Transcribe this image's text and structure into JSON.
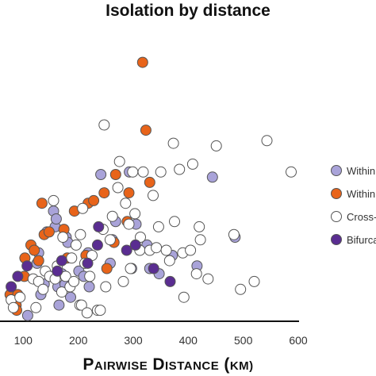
{
  "chart_data": {
    "type": "scatter",
    "title": "Isolation by distance",
    "xlabel": "Pairwise distance (km)",
    "ylabel": "",
    "xlim": [
      75,
      600
    ],
    "ylim": [
      0,
      100
    ],
    "xticks": [
      "100",
      "200",
      "300",
      "400",
      "500",
      "600"
    ],
    "xtick_values": [
      100,
      200,
      300,
      400,
      500,
      600
    ],
    "legend_position": "right",
    "series": [
      {
        "name": "Within",
        "color": "#a9a3d9",
        "points": [
          [
            108,
            1
          ],
          [
            125,
            21
          ],
          [
            128,
            25
          ],
          [
            132,
            9
          ],
          [
            138,
            13
          ],
          [
            143,
            33
          ],
          [
            155,
            41
          ],
          [
            158,
            35
          ],
          [
            160,
            38
          ],
          [
            163,
            12
          ],
          [
            165,
            5
          ],
          [
            170,
            17
          ],
          [
            176,
            13
          ],
          [
            178,
            31
          ],
          [
            181,
            29
          ],
          [
            186,
            8
          ],
          [
            201,
            18
          ],
          [
            210,
            16
          ],
          [
            218,
            25
          ],
          [
            220,
            12
          ],
          [
            241,
            55
          ],
          [
            258,
            21
          ],
          [
            262,
            30
          ],
          [
            268,
            37
          ],
          [
            293,
            56
          ],
          [
            297,
            19
          ],
          [
            305,
            36
          ],
          [
            325,
            28
          ],
          [
            330,
            19
          ],
          [
            347,
            17
          ],
          [
            371,
            24
          ],
          [
            416,
            20
          ],
          [
            444,
            54
          ],
          [
            485,
            31
          ]
        ]
      },
      {
        "name": "Within",
        "color": "#e8641a",
        "points": [
          [
            76,
            9
          ],
          [
            87,
            5
          ],
          [
            88,
            3
          ],
          [
            90,
            9
          ],
          [
            102,
            16
          ],
          [
            103,
            23
          ],
          [
            114,
            28
          ],
          [
            120,
            26
          ],
          [
            128,
            22
          ],
          [
            134,
            44
          ],
          [
            138,
            32
          ],
          [
            147,
            33
          ],
          [
            174,
            34
          ],
          [
            180,
            23
          ],
          [
            193,
            41
          ],
          [
            214,
            24
          ],
          [
            218,
            44
          ],
          [
            228,
            45
          ],
          [
            247,
            48
          ],
          [
            252,
            19
          ],
          [
            265,
            29
          ],
          [
            268,
            55
          ],
          [
            289,
            37
          ],
          [
            292,
            48
          ],
          [
            317,
            98
          ],
          [
            323,
            72
          ],
          [
            330,
            52
          ]
        ]
      },
      {
        "name": "Cross-",
        "color": "#ffffff",
        "points": [
          [
            78,
            7
          ],
          [
            82,
            4
          ],
          [
            94,
            8
          ],
          [
            118,
            15
          ],
          [
            123,
            4
          ],
          [
            128,
            14
          ],
          [
            136,
            11
          ],
          [
            140,
            18
          ],
          [
            148,
            16
          ],
          [
            155,
            45
          ],
          [
            158,
            15
          ],
          [
            162,
            20
          ],
          [
            170,
            10
          ],
          [
            172,
            31
          ],
          [
            177,
            16
          ],
          [
            185,
            12
          ],
          [
            188,
            23
          ],
          [
            192,
            14
          ],
          [
            196,
            28
          ],
          [
            203,
            5
          ],
          [
            204,
            32
          ],
          [
            206,
            5
          ],
          [
            208,
            42
          ],
          [
            212,
            21
          ],
          [
            216,
            2
          ],
          [
            221,
            16
          ],
          [
            225,
            24
          ],
          [
            235,
            3
          ],
          [
            240,
            3
          ],
          [
            245,
            34
          ],
          [
            247,
            74
          ],
          [
            250,
            12
          ],
          [
            258,
            30
          ],
          [
            262,
            39
          ],
          [
            272,
            50
          ],
          [
            275,
            60
          ],
          [
            282,
            14
          ],
          [
            286,
            44
          ],
          [
            292,
            36
          ],
          [
            295,
            19
          ],
          [
            299,
            56
          ],
          [
            303,
            40
          ],
          [
            312,
            26
          ],
          [
            313,
            31
          ],
          [
            318,
            56
          ],
          [
            330,
            26
          ],
          [
            336,
            47
          ],
          [
            342,
            27
          ],
          [
            346,
            35
          ],
          [
            350,
            56
          ],
          [
            360,
            26
          ],
          [
            366,
            22
          ],
          [
            373,
            67
          ],
          [
            375,
            37
          ],
          [
            384,
            57
          ],
          [
            390,
            25
          ],
          [
            392,
            8
          ],
          [
            404,
            26
          ],
          [
            408,
            59
          ],
          [
            415,
            17
          ],
          [
            420,
            35
          ],
          [
            422,
            30
          ],
          [
            436,
            15
          ],
          [
            451,
            66
          ],
          [
            483,
            32
          ],
          [
            495,
            11
          ],
          [
            520,
            14
          ],
          [
            543,
            68
          ],
          [
            587,
            56
          ]
        ]
      },
      {
        "name": "Bifurca",
        "color": "#5a2d91",
        "points": [
          [
            78,
            12
          ],
          [
            90,
            16
          ],
          [
            107,
            20
          ],
          [
            162,
            18
          ],
          [
            170,
            22
          ],
          [
            217,
            21
          ],
          [
            235,
            28
          ],
          [
            237,
            35
          ],
          [
            288,
            26
          ],
          [
            304,
            28
          ],
          [
            337,
            19
          ],
          [
            367,
            14
          ]
        ]
      }
    ]
  }
}
